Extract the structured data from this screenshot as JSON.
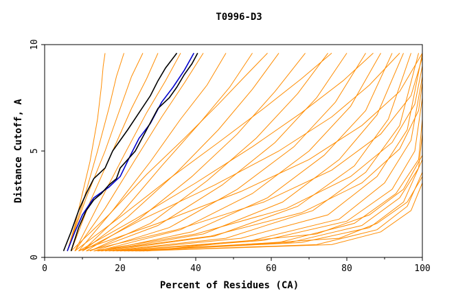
{
  "chart_data": {
    "type": "line",
    "title": "T0996-D3",
    "xlabel": "Percent of Residues (CA)",
    "ylabel": "Distance Cutoff, A",
    "xlim": [
      0,
      100
    ],
    "ylim": [
      0,
      10
    ],
    "xticks": [
      "0",
      "20",
      "40",
      "60",
      "80",
      "100"
    ],
    "yticks": [
      "0",
      "5",
      "10"
    ],
    "grid": false,
    "colors": {
      "models": "#ff8c00",
      "highlight_blue": "#0000cc",
      "highlight_black": "#000000"
    },
    "series": [
      {
        "color": "#0000cc",
        "x": [
          6,
          8,
          10,
          13,
          17,
          20,
          23,
          25,
          28,
          31,
          34,
          37,
          39.5
        ],
        "y": [
          0.3,
          1.2,
          2.0,
          2.8,
          3.3,
          3.8,
          4.9,
          5.6,
          6.3,
          7.3,
          8.0,
          8.8,
          9.6
        ]
      },
      {
        "color": "#000000",
        "x": [
          7,
          9,
          11,
          13,
          15,
          17,
          19,
          20,
          24,
          27,
          30,
          33,
          35,
          37,
          39,
          40.5
        ],
        "y": [
          0.3,
          1.4,
          2.2,
          2.7,
          3.0,
          3.4,
          3.7,
          4.2,
          5.0,
          6.0,
          7.0,
          7.5,
          8.0,
          8.6,
          9.1,
          9.6
        ]
      },
      {
        "color": "#000000",
        "x": [
          5,
          7,
          9,
          11,
          13,
          16,
          18,
          20,
          22,
          25,
          28,
          30,
          32,
          35
        ],
        "y": [
          0.3,
          1.2,
          2.2,
          3.0,
          3.7,
          4.2,
          5.0,
          5.5,
          6.0,
          6.8,
          7.6,
          8.3,
          8.9,
          9.6
        ]
      },
      {
        "color": "#ff8c00",
        "x": [
          6,
          8,
          10,
          12,
          14,
          15,
          15.5,
          16
        ],
        "y": [
          0.3,
          1.5,
          3.0,
          4.5,
          6.5,
          8.0,
          9.0,
          9.6
        ]
      },
      {
        "color": "#ff8c00",
        "x": [
          6,
          10,
          14,
          17,
          19,
          21
        ],
        "y": [
          0.3,
          2.5,
          5.0,
          7.0,
          8.5,
          9.6
        ]
      },
      {
        "color": "#ff8c00",
        "x": [
          6,
          11,
          16,
          20,
          23,
          26
        ],
        "y": [
          0.3,
          2.8,
          5.0,
          7.0,
          8.5,
          9.6
        ]
      },
      {
        "color": "#ff8c00",
        "x": [
          7,
          12,
          18,
          23,
          27,
          30
        ],
        "y": [
          0.3,
          2.6,
          5.0,
          7.0,
          8.4,
          9.6
        ]
      },
      {
        "color": "#ff8c00",
        "x": [
          8,
          14,
          21,
          27,
          32,
          36
        ],
        "y": [
          0.3,
          2.4,
          4.8,
          6.8,
          8.3,
          9.6
        ]
      },
      {
        "color": "#ff8c00",
        "x": [
          8,
          16,
          24,
          31,
          37,
          42
        ],
        "y": [
          0.3,
          2.3,
          4.6,
          6.6,
          8.2,
          9.6
        ]
      },
      {
        "color": "#ff8c00",
        "x": [
          9,
          18,
          28,
          36,
          43,
          48
        ],
        "y": [
          0.3,
          2.2,
          4.5,
          6.5,
          8.1,
          9.6
        ]
      },
      {
        "color": "#ff8c00",
        "x": [
          10,
          20,
          31,
          41,
          49,
          55
        ],
        "y": [
          0.3,
          2.0,
          4.3,
          6.3,
          8.0,
          9.6
        ]
      },
      {
        "color": "#ff8c00",
        "x": [
          10,
          22,
          35,
          46,
          55,
          62
        ],
        "y": [
          0.3,
          1.9,
          4.0,
          6.0,
          7.9,
          9.6
        ]
      },
      {
        "color": "#ff8c00",
        "x": [
          11,
          25,
          39,
          51,
          61,
          69
        ],
        "y": [
          0.3,
          1.8,
          3.8,
          5.8,
          7.8,
          9.6
        ]
      },
      {
        "color": "#ff8c00",
        "x": [
          12,
          28,
          43,
          56,
          67,
          75
        ],
        "y": [
          0.3,
          1.6,
          3.6,
          5.6,
          7.7,
          9.6
        ]
      },
      {
        "color": "#ff8c00",
        "x": [
          12,
          30,
          47,
          61,
          72,
          80
        ],
        "y": [
          0.3,
          1.5,
          3.4,
          5.4,
          7.5,
          9.6
        ]
      },
      {
        "color": "#ff8c00",
        "x": [
          13,
          33,
          51,
          66,
          77,
          85
        ],
        "y": [
          0.3,
          1.4,
          3.2,
          5.2,
          7.3,
          9.6
        ]
      },
      {
        "color": "#ff8c00",
        "x": [
          14,
          36,
          55,
          70,
          81,
          89
        ],
        "y": [
          0.3,
          1.3,
          3.0,
          5.0,
          7.1,
          9.6
        ]
      },
      {
        "color": "#ff8c00",
        "x": [
          15,
          39,
          59,
          74,
          85,
          92
        ],
        "y": [
          0.3,
          1.2,
          2.8,
          4.8,
          6.9,
          9.6
        ]
      },
      {
        "color": "#ff8c00",
        "x": [
          15,
          42,
          63,
          78,
          88,
          95
        ],
        "y": [
          0.3,
          1.1,
          2.6,
          4.6,
          6.7,
          9.6
        ]
      },
      {
        "color": "#ff8c00",
        "x": [
          16,
          45,
          67,
          82,
          91,
          97
        ],
        "y": [
          0.3,
          1.0,
          2.4,
          4.3,
          6.5,
          9.6
        ]
      },
      {
        "color": "#ff8c00",
        "x": [
          17,
          48,
          71,
          85,
          94,
          99
        ],
        "y": [
          0.3,
          0.9,
          2.2,
          4.0,
          6.2,
          9.6
        ]
      },
      {
        "color": "#ff8c00",
        "x": [
          18,
          52,
          75,
          88,
          96,
          100
        ],
        "y": [
          0.3,
          0.9,
          2.0,
          3.8,
          6.0,
          9.6
        ]
      },
      {
        "color": "#ff8c00",
        "x": [
          19,
          55,
          78,
          90,
          97,
          100
        ],
        "y": [
          0.3,
          0.8,
          1.8,
          3.5,
          5.5,
          8.5
        ]
      },
      {
        "color": "#ff8c00",
        "x": [
          20,
          58,
          80,
          92,
          98,
          100
        ],
        "y": [
          0.3,
          0.8,
          1.7,
          3.2,
          5.0,
          7.5
        ]
      },
      {
        "color": "#ff8c00",
        "x": [
          21,
          62,
          82,
          93,
          99,
          100
        ],
        "y": [
          0.3,
          0.7,
          1.6,
          3.0,
          4.6,
          6.5
        ]
      },
      {
        "color": "#ff8c00",
        "x": [
          22,
          65,
          84,
          94,
          99,
          100
        ],
        "y": [
          0.3,
          0.7,
          1.5,
          2.8,
          4.2,
          5.8
        ]
      },
      {
        "color": "#ff8c00",
        "x": [
          23,
          68,
          86,
          95,
          100
        ],
        "y": [
          0.3,
          0.7,
          1.4,
          2.6,
          4.6
        ]
      },
      {
        "color": "#ff8c00",
        "x": [
          24,
          72,
          88,
          96,
          100
        ],
        "y": [
          0.3,
          0.6,
          1.3,
          2.4,
          4.0
        ]
      },
      {
        "color": "#ff8c00",
        "x": [
          25,
          76,
          89,
          97,
          100
        ],
        "y": [
          0.3,
          0.6,
          1.2,
          2.2,
          3.5
        ]
      },
      {
        "color": "#ff8c00",
        "x": [
          26,
          78,
          88,
          96,
          100
        ],
        "y": [
          0.3,
          0.9,
          1.6,
          2.6,
          3.8
        ]
      },
      {
        "color": "#ff8c00",
        "x": [
          27,
          72,
          86,
          95,
          100
        ],
        "y": [
          0.3,
          1.1,
          2.0,
          3.2,
          4.8
        ]
      },
      {
        "color": "#ff8c00",
        "x": [
          9,
          30,
          52,
          70,
          84,
          94,
          100
        ],
        "y": [
          0.3,
          1.6,
          3.1,
          4.6,
          6.2,
          7.8,
          9.6
        ]
      },
      {
        "color": "#ff8c00",
        "x": [
          10,
          26,
          45,
          62,
          76,
          86,
          94
        ],
        "y": [
          0.3,
          1.8,
          3.4,
          5.0,
          6.6,
          8.1,
          9.6
        ]
      },
      {
        "color": "#ff8c00",
        "x": [
          11,
          35,
          58,
          76,
          89,
          97,
          100
        ],
        "y": [
          0.3,
          1.3,
          2.6,
          4.1,
          5.8,
          7.6,
          9.4
        ]
      },
      {
        "color": "#ff8c00",
        "x": [
          8,
          20,
          33,
          46,
          58,
          68,
          76
        ],
        "y": [
          0.3,
          1.9,
          3.7,
          5.4,
          7.0,
          8.4,
          9.6
        ]
      },
      {
        "color": "#ff8c00",
        "x": [
          7,
          17,
          27,
          37,
          46,
          53,
          59
        ],
        "y": [
          0.3,
          2.0,
          3.9,
          5.6,
          7.2,
          8.5,
          9.6
        ]
      },
      {
        "color": "#ff8c00",
        "x": [
          13,
          40,
          64,
          81,
          92,
          98,
          100
        ],
        "y": [
          0.3,
          1.1,
          2.3,
          3.8,
          5.4,
          7.2,
          9.0
        ]
      },
      {
        "color": "#ff8c00",
        "x": [
          9,
          24,
          40,
          55,
          68,
          79,
          87
        ],
        "y": [
          0.3,
          1.8,
          3.5,
          5.2,
          6.8,
          8.3,
          9.6
        ]
      },
      {
        "color": "#ff8c00",
        "x": [
          14,
          44,
          68,
          84,
          94,
          99,
          100
        ],
        "y": [
          0.3,
          1.0,
          2.1,
          3.5,
          5.1,
          6.9,
          8.2
        ]
      }
    ]
  }
}
